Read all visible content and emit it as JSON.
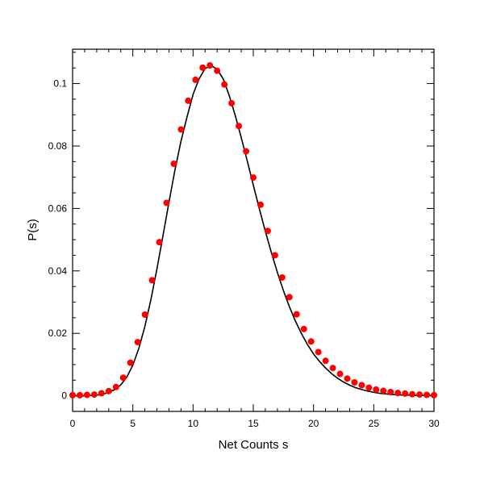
{
  "chart_data": {
    "type": "line",
    "title": "",
    "xlabel": "Net Counts s",
    "ylabel": "P(s)",
    "xlim": [
      0,
      30
    ],
    "ylim": [
      -0.005,
      0.111
    ],
    "x_ticks": [
      0,
      5,
      10,
      15,
      20,
      25,
      30
    ],
    "x_tick_labels": [
      "0",
      "5",
      "10",
      "15",
      "20",
      "25",
      "30"
    ],
    "y_ticks": [
      0,
      0.02,
      0.04,
      0.06,
      0.08,
      0.1
    ],
    "y_tick_labels": [
      "0",
      "0.02",
      "0.04",
      "0.06",
      "0.08",
      "0.1"
    ],
    "grid": false,
    "legend": "none",
    "series": [
      {
        "kind": "line",
        "color": "#000000",
        "x": [
          0,
          0.5,
          1,
          1.5,
          2,
          2.5,
          3,
          3.5,
          4,
          4.5,
          5,
          5.5,
          6,
          6.5,
          7,
          7.5,
          8,
          8.5,
          9,
          9.5,
          10,
          10.5,
          11,
          11.5,
          12,
          12.5,
          13,
          13.5,
          14,
          14.5,
          15,
          15.5,
          16,
          16.5,
          17,
          17.5,
          18,
          18.5,
          19,
          19.5,
          20,
          20.5,
          21,
          21.5,
          22,
          22.5,
          23,
          23.5,
          24,
          24.5,
          25,
          25.5,
          26,
          26.5,
          27,
          27.5,
          28,
          28.5,
          29,
          29.5,
          30
        ],
        "y": [
          0.0,
          0.0,
          0.0,
          0.0001,
          0.0002,
          0.0005,
          0.0011,
          0.002,
          0.0035,
          0.006,
          0.0098,
          0.0152,
          0.0222,
          0.0308,
          0.0406,
          0.0512,
          0.062,
          0.0724,
          0.0816,
          0.0893,
          0.0965,
          0.1015,
          0.1048,
          0.1058,
          0.1046,
          0.1015,
          0.0962,
          0.0898,
          0.0827,
          0.0752,
          0.0675,
          0.0599,
          0.0527,
          0.0459,
          0.0395,
          0.0337,
          0.0285,
          0.0239,
          0.0199,
          0.0164,
          0.0134,
          0.011,
          0.0089,
          0.0071,
          0.0056,
          0.0044,
          0.0034,
          0.0026,
          0.002,
          0.0015,
          0.0011,
          0.0008,
          0.0006,
          0.0004,
          0.0003,
          0.0002,
          0.0002,
          0.0001,
          0.0001,
          0.0001,
          0.0
        ]
      },
      {
        "kind": "scatter",
        "color": "#ff0000",
        "x": [
          0,
          0.6,
          1.2,
          1.8,
          2.4,
          3.0,
          3.6,
          4.2,
          4.8,
          5.4,
          6.0,
          6.6,
          7.2,
          7.8,
          8.4,
          9.0,
          9.6,
          10.2,
          10.8,
          11.4,
          12.0,
          12.6,
          13.2,
          13.8,
          14.4,
          15.0,
          15.6,
          16.2,
          16.8,
          17.4,
          18.0,
          18.6,
          19.2,
          19.8,
          20.4,
          21.0,
          21.6,
          22.2,
          22.8,
          23.4,
          24.0,
          24.6,
          25.2,
          25.8,
          26.4,
          27.0,
          27.6,
          28.2,
          28.8,
          29.4,
          30.0
        ],
        "y": [
          0.0002,
          0.0002,
          0.0003,
          0.0004,
          0.0008,
          0.0015,
          0.0028,
          0.0058,
          0.0106,
          0.0172,
          0.026,
          0.037,
          0.0492,
          0.0618,
          0.0743,
          0.0853,
          0.0945,
          0.1012,
          0.1051,
          0.1058,
          0.1041,
          0.0997,
          0.0937,
          0.0864,
          0.0783,
          0.0699,
          0.0612,
          0.0528,
          0.045,
          0.0379,
          0.0316,
          0.0261,
          0.0214,
          0.0174,
          0.014,
          0.0112,
          0.0089,
          0.007,
          0.0055,
          0.0043,
          0.0034,
          0.0026,
          0.002,
          0.0016,
          0.0012,
          0.0009,
          0.0007,
          0.0005,
          0.0004,
          0.0003,
          0.0002
        ]
      }
    ]
  }
}
